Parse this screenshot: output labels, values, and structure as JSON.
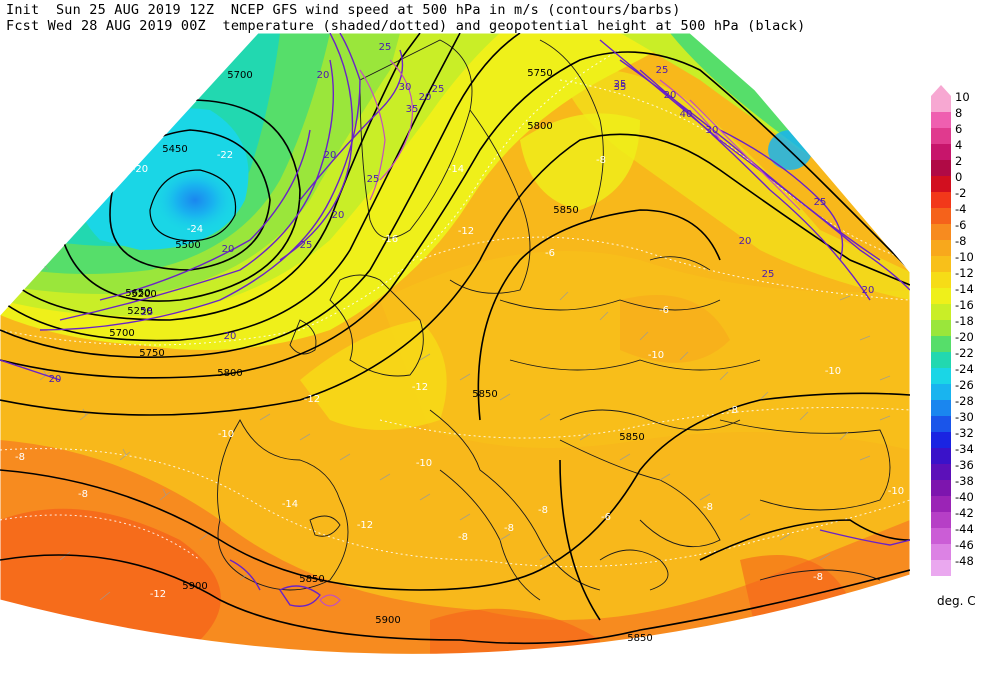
{
  "header": {
    "line1": "Init  Sun 25 AUG 2019 12Z  NCEP GFS wind speed at 500 hPa in m/s (contours/barbs)",
    "line2": "Fcst Wed 28 AUG 2019 00Z  temperature (shaded/dotted) and geopotential height at 500 hPa (black)"
  },
  "legend": {
    "units": "deg. C",
    "levels": [
      {
        "label": "10",
        "color": "#f7a8d2"
      },
      {
        "label": "8",
        "color": "#ef5fb0"
      },
      {
        "label": "6",
        "color": "#e03a8e"
      },
      {
        "label": "4",
        "color": "#c7156b"
      },
      {
        "label": "2",
        "color": "#b00a45"
      },
      {
        "label": "0",
        "color": "#d20f1f"
      },
      {
        "label": "-2",
        "color": "#f2381a"
      },
      {
        "label": "-4",
        "color": "#f5621b"
      },
      {
        "label": "-6",
        "color": "#f78b1f"
      },
      {
        "label": "-8",
        "color": "#f8a81c"
      },
      {
        "label": "-10",
        "color": "#f8c01a"
      },
      {
        "label": "-12",
        "color": "#f6dc17"
      },
      {
        "label": "-14",
        "color": "#eff01a"
      },
      {
        "label": "-16",
        "color": "#c9ee27"
      },
      {
        "label": "-18",
        "color": "#9ae63b"
      },
      {
        "label": "-20",
        "color": "#56de6a"
      },
      {
        "label": "-22",
        "color": "#22d8b0"
      },
      {
        "label": "-24",
        "color": "#1ad6e6"
      },
      {
        "label": "-26",
        "color": "#19b4ef"
      },
      {
        "label": "-28",
        "color": "#1a86ef"
      },
      {
        "label": "-30",
        "color": "#1a55ea"
      },
      {
        "label": "-32",
        "color": "#1a24e2"
      },
      {
        "label": "-34",
        "color": "#3a12c9"
      },
      {
        "label": "-36",
        "color": "#5c10b9"
      },
      {
        "label": "-38",
        "color": "#7d15ae"
      },
      {
        "label": "-40",
        "color": "#9b24b6"
      },
      {
        "label": "-42",
        "color": "#b63fc6"
      },
      {
        "label": "-44",
        "color": "#cb5dd6"
      },
      {
        "label": "-46",
        "color": "#dc82e4"
      },
      {
        "label": "-48",
        "color": "#eaa8ef"
      }
    ]
  },
  "height_labels": [
    "5700",
    "5450",
    "5500",
    "5650",
    "5700",
    "5750",
    "5800",
    "5750",
    "5800",
    "5850",
    "5850",
    "5850",
    "5900",
    "5850",
    "5900",
    "5850",
    "5200",
    "5250"
  ],
  "wind_labels": [
    "25",
    "20",
    "30",
    "35",
    "20",
    "25",
    "20",
    "20",
    "25",
    "25",
    "20",
    "20",
    "25",
    "20",
    "25",
    "25",
    "20",
    "30",
    "40",
    "35",
    "25",
    "20",
    "25",
    "20"
  ],
  "temp_labels": [
    "-22",
    "-20",
    "-24",
    "-16",
    "-14",
    "-12",
    "-12",
    "-14",
    "-12",
    "-12",
    "-10",
    "-10",
    "-10",
    "-8",
    "-8",
    "-10",
    "-6",
    "-6",
    "-8",
    "-8",
    "-8",
    "-8",
    "-8",
    "-8",
    "-6",
    "-8",
    "-10",
    "-12",
    "-6"
  ]
}
